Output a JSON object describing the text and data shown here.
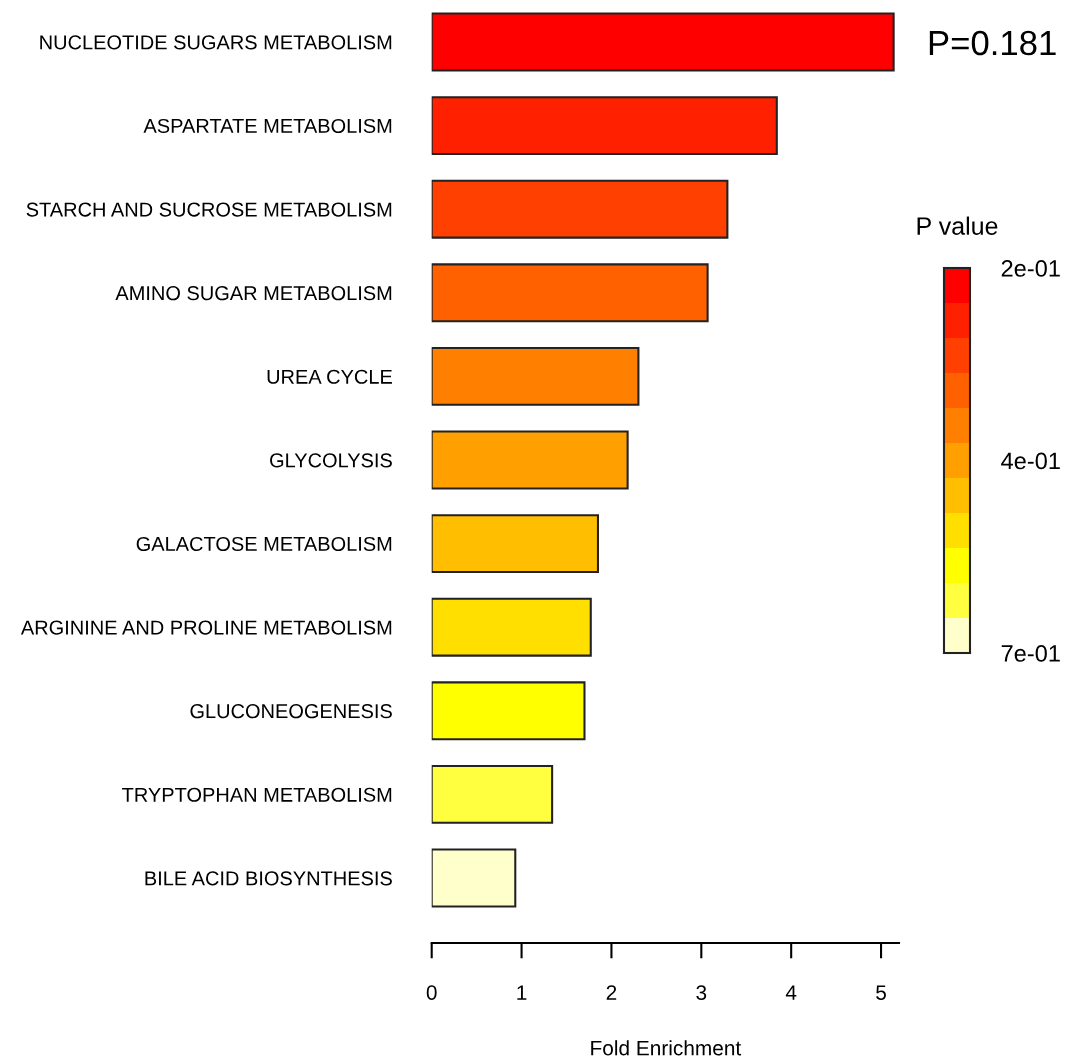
{
  "chart_data": {
    "type": "bar",
    "orientation": "horizontal",
    "categories": [
      "NUCLEOTIDE SUGARS METABOLISM",
      "ASPARTATE METABOLISM",
      "STARCH AND SUCROSE METABOLISM",
      "AMINO SUGAR METABOLISM",
      "UREA CYCLE",
      "GLYCOLYSIS",
      "GALACTOSE METABOLISM",
      "ARGININE AND PROLINE METABOLISM",
      "GLUCONEOGENESIS",
      "TRYPTOPHAN METABOLISM",
      "BILE ACID BIOSYNTHESIS"
    ],
    "values": [
      5.14,
      3.84,
      3.29,
      3.07,
      2.3,
      2.18,
      1.85,
      1.77,
      1.7,
      1.34,
      0.93
    ],
    "colors": [
      "#ff0000",
      "#ff2000",
      "#ff4000",
      "#ff6000",
      "#ff8000",
      "#ff9f00",
      "#ffbf00",
      "#ffdf00",
      "#ffff00",
      "#ffff40",
      "#ffffcc"
    ],
    "xlabel": "Fold Enrichment",
    "xlim": [
      0,
      5.2
    ],
    "xticks": [
      0,
      1,
      2,
      3,
      4,
      5
    ],
    "clabel": "P value",
    "clim": [
      0.7,
      0.2
    ],
    "cticks": [
      {
        "value": 0.2,
        "label": "2e-01"
      },
      {
        "value": 0.45,
        "label": "4e-01"
      },
      {
        "value": 0.7,
        "label": "7e-01"
      }
    ],
    "annotations": [
      "P=0.181"
    ]
  }
}
